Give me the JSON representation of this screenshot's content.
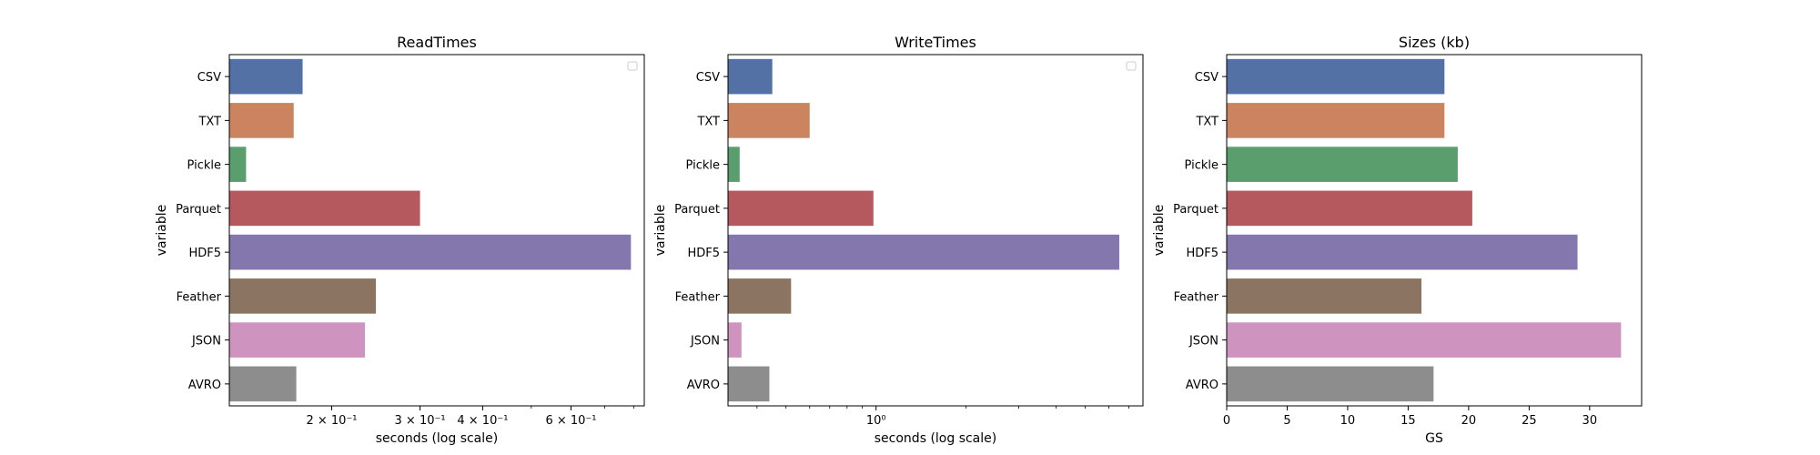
{
  "chart_data": [
    {
      "type": "bar",
      "orientation": "horizontal",
      "title": "ReadTimes",
      "xlabel": "seconds (log scale)",
      "ylabel": "variable",
      "xscale": "log",
      "xlim": [
        0.125,
        0.84
      ],
      "categories": [
        "CSV",
        "TXT",
        "Pickle",
        "Parquet",
        "HDF5",
        "Feather",
        "JSON",
        "AVRO"
      ],
      "values": [
        0.175,
        0.168,
        0.135,
        0.3,
        0.79,
        0.245,
        0.233,
        0.17
      ],
      "xticks": [
        {
          "value": 0.2,
          "label": "2 × 10⁻¹"
        },
        {
          "value": 0.3,
          "label": "3 × 10⁻¹"
        },
        {
          "value": 0.4,
          "label": "4 × 10⁻¹"
        },
        {
          "value": 0.6,
          "label": "6 × 10⁻¹"
        }
      ],
      "minor_ticks": [
        0.5,
        0.7,
        0.8
      ],
      "legend": "top-right (empty)"
    },
    {
      "type": "bar",
      "orientation": "horizontal",
      "title": "WriteTimes",
      "xlabel": "seconds (log scale)",
      "ylabel": "variable",
      "xscale": "log",
      "xlim": [
        0.32,
        7.8
      ],
      "categories": [
        "CSV",
        "TXT",
        "Pickle",
        "Parquet",
        "HDF5",
        "Feather",
        "JSON",
        "AVRO"
      ],
      "values": [
        0.45,
        0.6,
        0.35,
        0.98,
        6.5,
        0.52,
        0.355,
        0.44
      ],
      "xticks": [
        {
          "value": 1,
          "label": "10⁰"
        }
      ],
      "minor_ticks": [
        0.4,
        0.5,
        0.6,
        0.7,
        0.8,
        0.9,
        2,
        3,
        4,
        5,
        6,
        7
      ],
      "legend": "top-right (empty)"
    },
    {
      "type": "bar",
      "orientation": "horizontal",
      "title": "Sizes (kb)",
      "xlabel": "GS",
      "ylabel": "variable",
      "xscale": "linear",
      "xlim": [
        0,
        34.3
      ],
      "categories": [
        "CSV",
        "TXT",
        "Pickle",
        "Parquet",
        "HDF5",
        "Feather",
        "JSON",
        "AVRO"
      ],
      "values": [
        18.0,
        18.0,
        19.1,
        20.3,
        29.0,
        16.1,
        32.6,
        17.1
      ],
      "xticks": [
        {
          "value": 0,
          "label": "0"
        },
        {
          "value": 5,
          "label": "5"
        },
        {
          "value": 10,
          "label": "10"
        },
        {
          "value": 15,
          "label": "15"
        },
        {
          "value": 20,
          "label": "20"
        },
        {
          "value": 25,
          "label": "25"
        },
        {
          "value": 30,
          "label": "30"
        }
      ],
      "minor_ticks": []
    }
  ],
  "colors": [
    "#5471a5",
    "#cc8460",
    "#5a9e6e",
    "#b5595f",
    "#8377ad",
    "#8c7462",
    "#cf93bf",
    "#8d8d8d"
  ]
}
